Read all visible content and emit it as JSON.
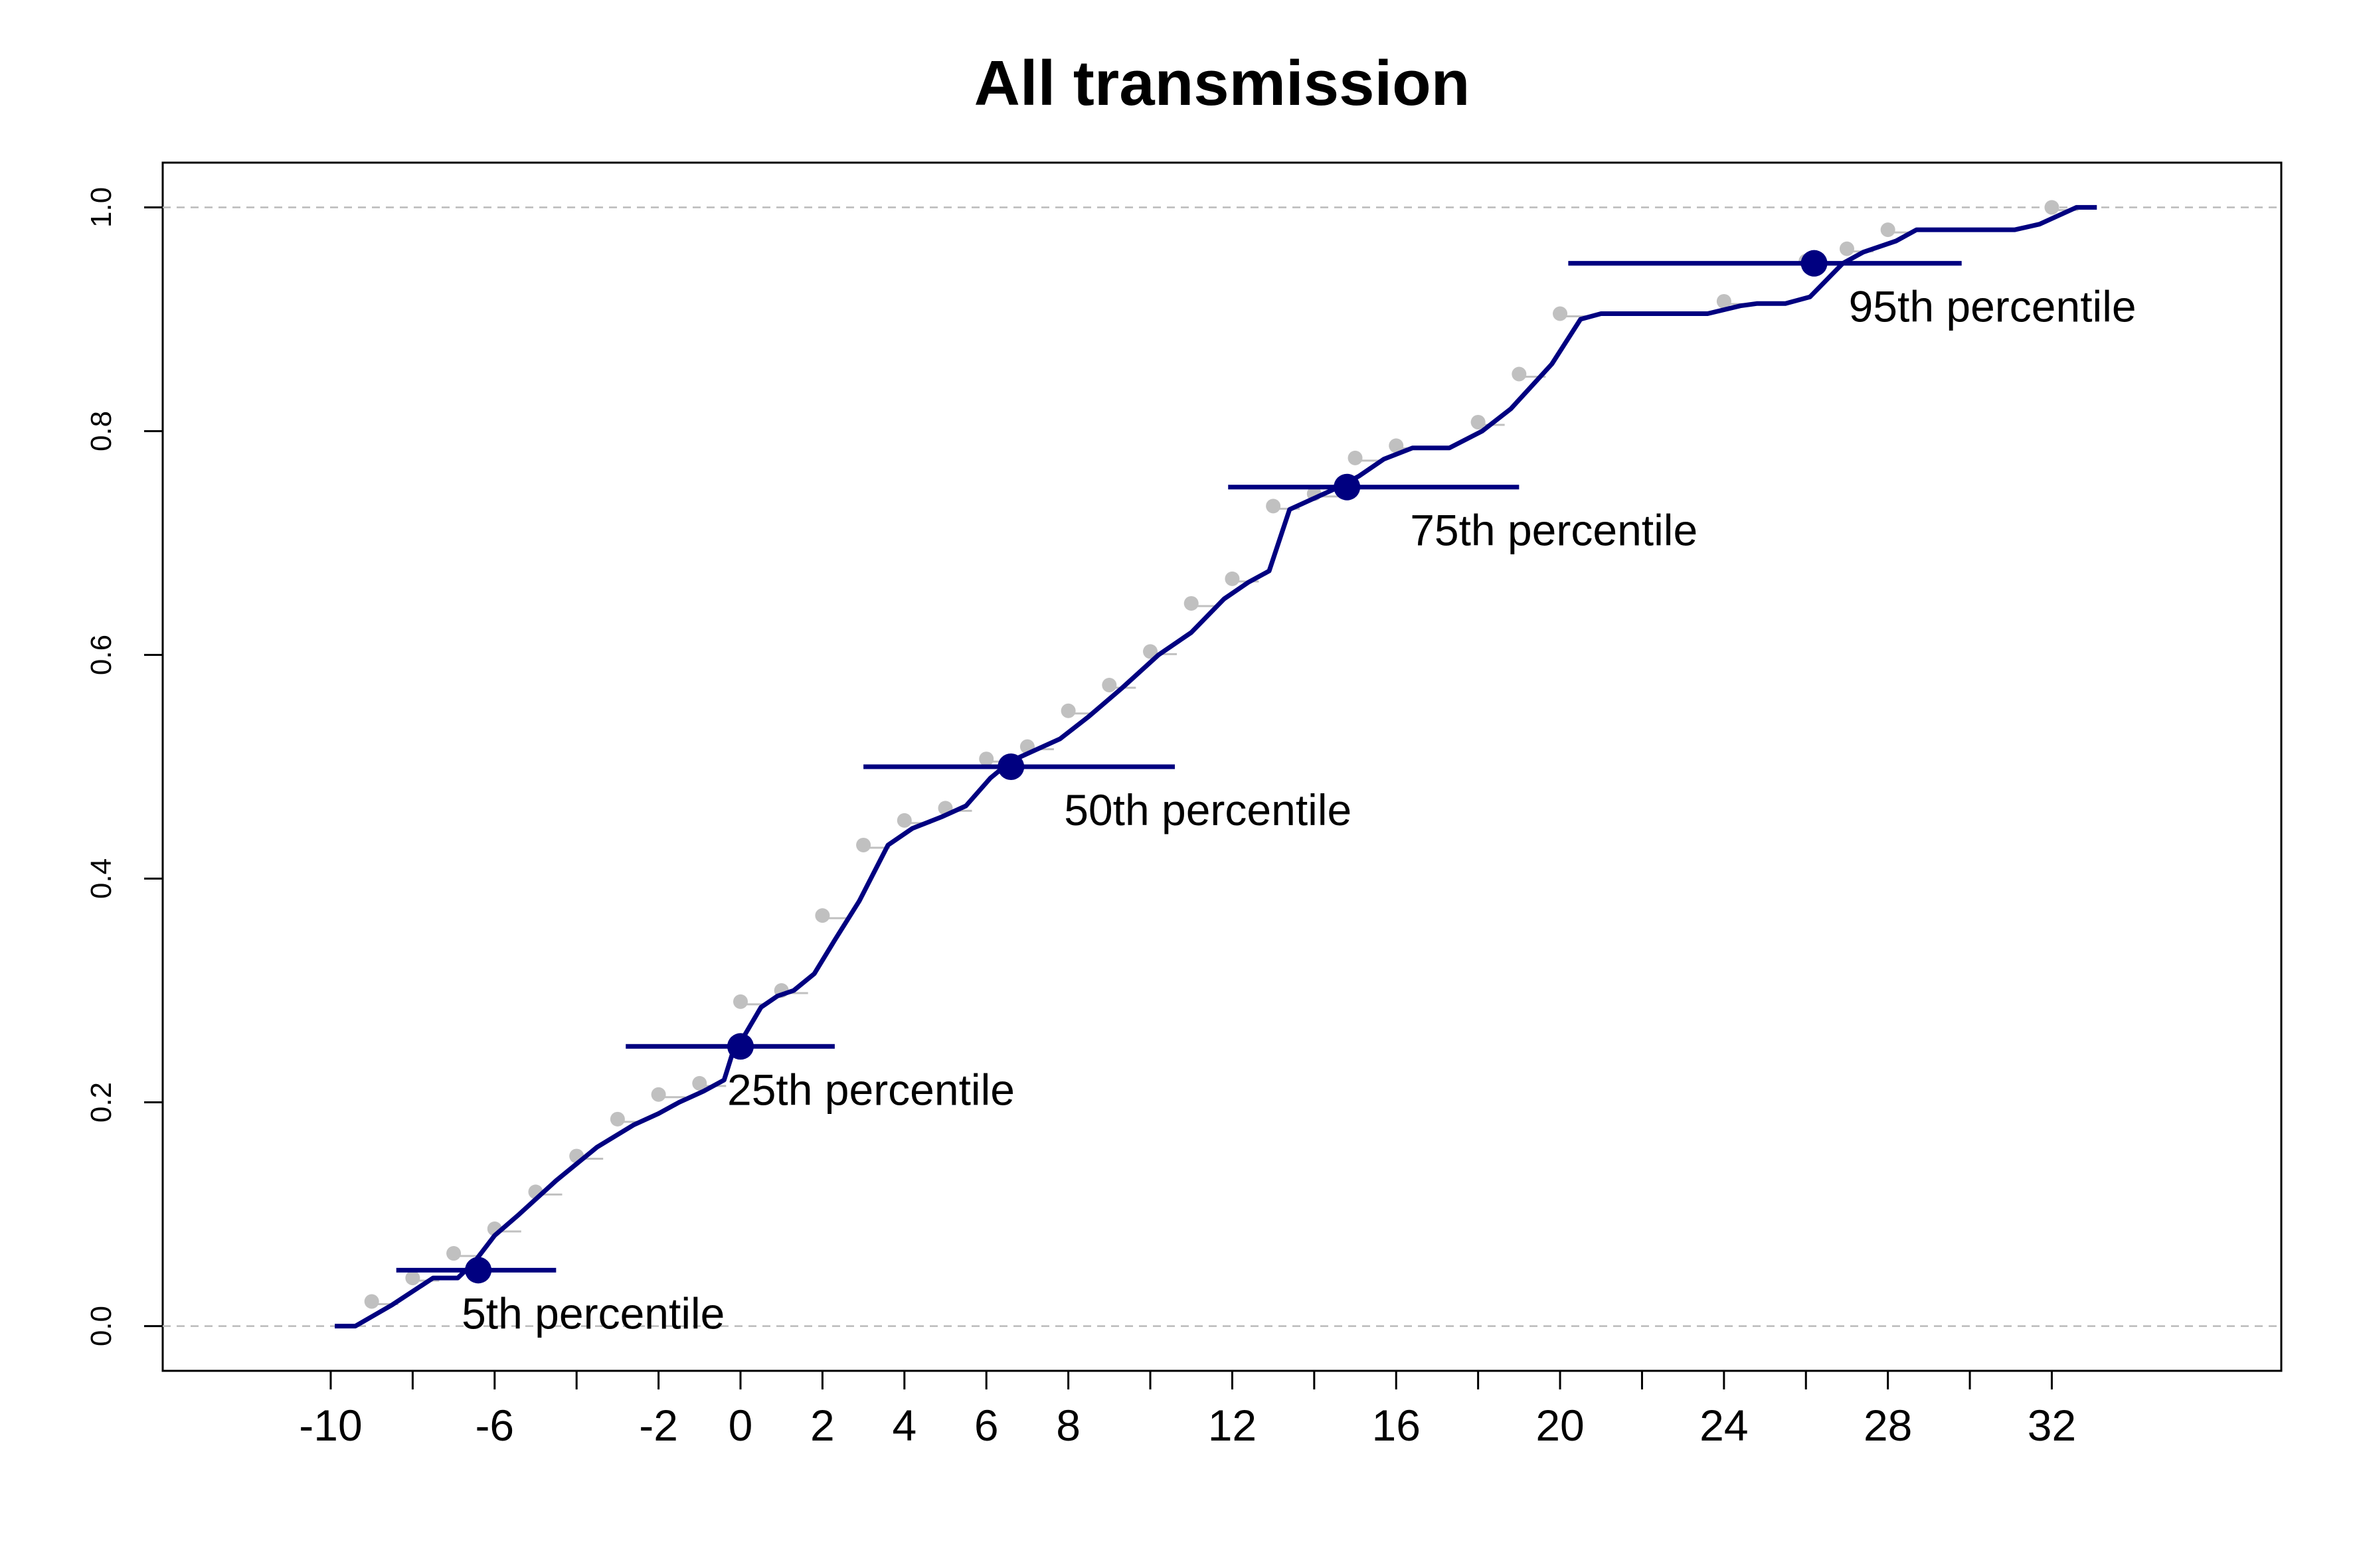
{
  "chart_data": {
    "type": "line",
    "title": "All transmission",
    "xlabel": "",
    "ylabel": "",
    "xlim": [
      -14.1,
      37.6
    ],
    "ylim": [
      -0.04,
      1.04
    ],
    "x_ticks_labeled": [
      -10,
      -6,
      -2,
      0,
      2,
      4,
      6,
      8,
      12,
      16,
      20,
      24,
      28,
      32
    ],
    "x_ticks_unlabeled": [
      -8,
      -4,
      10,
      14,
      18,
      22,
      26,
      30
    ],
    "y_ticks": [
      "0.0",
      "0.2",
      "0.4",
      "0.6",
      "0.8",
      "1.0"
    ],
    "reference_lines_y": [
      0,
      1
    ],
    "colors": {
      "curve": "#000080",
      "points": "#c0c0c0",
      "reference": "#bbbbbb"
    },
    "series": [
      {
        "type": "line",
        "x": [
          -9.9,
          -9.4,
          -8.5,
          -7.5,
          -6.9,
          -6.5,
          -6.0,
          -5.4,
          -4.5,
          -3.5,
          -2.6,
          -2.0,
          -1.5,
          -0.9,
          -0.4,
          -0.1,
          0.1,
          0.5,
          0.9,
          1.3,
          1.8,
          2.3,
          2.9,
          3.6,
          4.2,
          4.9,
          5.5,
          6.1,
          6.6,
          7.2,
          7.8,
          8.5,
          9.3,
          10.2,
          11.0,
          11.8,
          12.4,
          12.9,
          13.4,
          14.0,
          14.6,
          15.1,
          15.7,
          16.4,
          17.3,
          18.1,
          18.8,
          19.3,
          19.8,
          20.5,
          21.0,
          22.0,
          23.6,
          24.4,
          24.8,
          25.5,
          26.1,
          26.9,
          27.4,
          28.2,
          28.7,
          30.0,
          31.1,
          31.7,
          32.6,
          33.1
        ],
        "y": [
          0.0,
          0.0,
          0.019,
          0.043,
          0.043,
          0.057,
          0.081,
          0.1,
          0.13,
          0.16,
          0.18,
          0.19,
          0.2,
          0.21,
          0.22,
          0.255,
          0.26,
          0.285,
          0.295,
          0.3,
          0.315,
          0.345,
          0.38,
          0.43,
          0.445,
          0.455,
          0.465,
          0.49,
          0.505,
          0.515,
          0.525,
          0.545,
          0.57,
          0.6,
          0.62,
          0.65,
          0.665,
          0.675,
          0.73,
          0.74,
          0.75,
          0.76,
          0.775,
          0.785,
          0.785,
          0.8,
          0.82,
          0.84,
          0.86,
          0.9,
          0.905,
          0.905,
          0.905,
          0.912,
          0.914,
          0.914,
          0.92,
          0.95,
          0.96,
          0.97,
          0.98,
          0.98,
          0.98,
          0.985,
          1.0,
          1.0
        ]
      },
      {
        "type": "scatter",
        "x": [
          -9.0,
          -8.0,
          -7.0,
          -6.0,
          -5.0,
          -4.0,
          -3.0,
          -2.0,
          -1.0,
          0.0,
          1.0,
          2.0,
          3.0,
          4.0,
          5.0,
          6.0,
          7.0,
          8.0,
          9.0,
          10.0,
          11.0,
          12.0,
          13.0,
          14.0,
          15.0,
          16.0,
          18.0,
          19.0,
          20.0,
          24.0,
          26.0,
          27.0,
          28.0,
          32.0
        ],
        "y": [
          0.022,
          0.043,
          0.065,
          0.087,
          0.12,
          0.152,
          0.185,
          0.207,
          0.217,
          0.29,
          0.3,
          0.367,
          0.43,
          0.452,
          0.463,
          0.507,
          0.518,
          0.55,
          0.573,
          0.603,
          0.646,
          0.668,
          0.733,
          0.744,
          0.776,
          0.787,
          0.808,
          0.851,
          0.905,
          0.916,
          0.952,
          0.963,
          0.98,
          1.0
        ]
      }
    ],
    "percentiles": [
      {
        "label": "5th percentile",
        "y": 0.05,
        "x": -6.4,
        "lo": -8.4,
        "hi": -4.5
      },
      {
        "label": "25th percentile",
        "y": 0.25,
        "x": 0.0,
        "lo": -2.8,
        "hi": 2.3
      },
      {
        "label": "50th percentile",
        "y": 0.5,
        "x": 6.6,
        "lo": 3.0,
        "hi": 10.6
      },
      {
        "label": "75th percentile",
        "y": 0.75,
        "x": 14.8,
        "lo": 11.9,
        "hi": 19.0
      },
      {
        "label": "95th percentile",
        "y": 0.95,
        "x": 26.2,
        "lo": 20.2,
        "hi": 29.8
      }
    ]
  }
}
